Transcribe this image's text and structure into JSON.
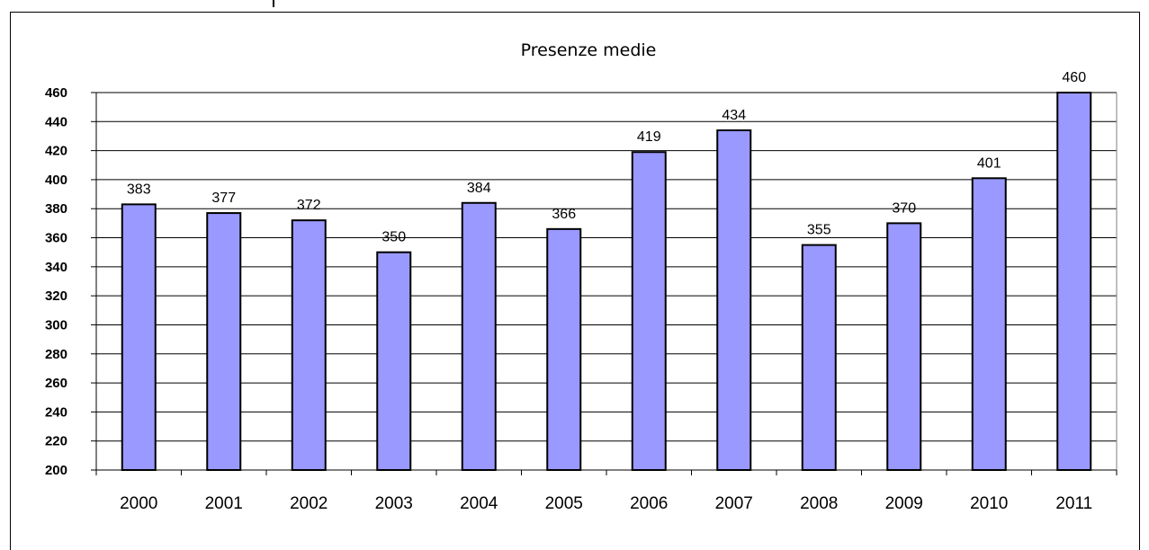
{
  "chart_data": {
    "type": "bar",
    "title": "Presenze medie",
    "categories": [
      "2000",
      "2001",
      "2002",
      "2003",
      "2004",
      "2005",
      "2006",
      "2007",
      "2008",
      "2009",
      "2010",
      "2011"
    ],
    "values": [
      383,
      377,
      372,
      350,
      384,
      366,
      419,
      434,
      355,
      370,
      401,
      460
    ],
    "data_labels": [
      "383",
      "377",
      "372",
      "350",
      "384",
      "366",
      "419",
      "434",
      "355",
      "370",
      "401",
      "460"
    ],
    "ylim": [
      200,
      460
    ],
    "yticks": [
      200,
      220,
      240,
      260,
      280,
      300,
      320,
      340,
      360,
      380,
      400,
      420,
      440,
      460
    ],
    "grid": true,
    "legend": "none",
    "bar_color": "#9999ff",
    "bar_stroke": "#000000"
  }
}
